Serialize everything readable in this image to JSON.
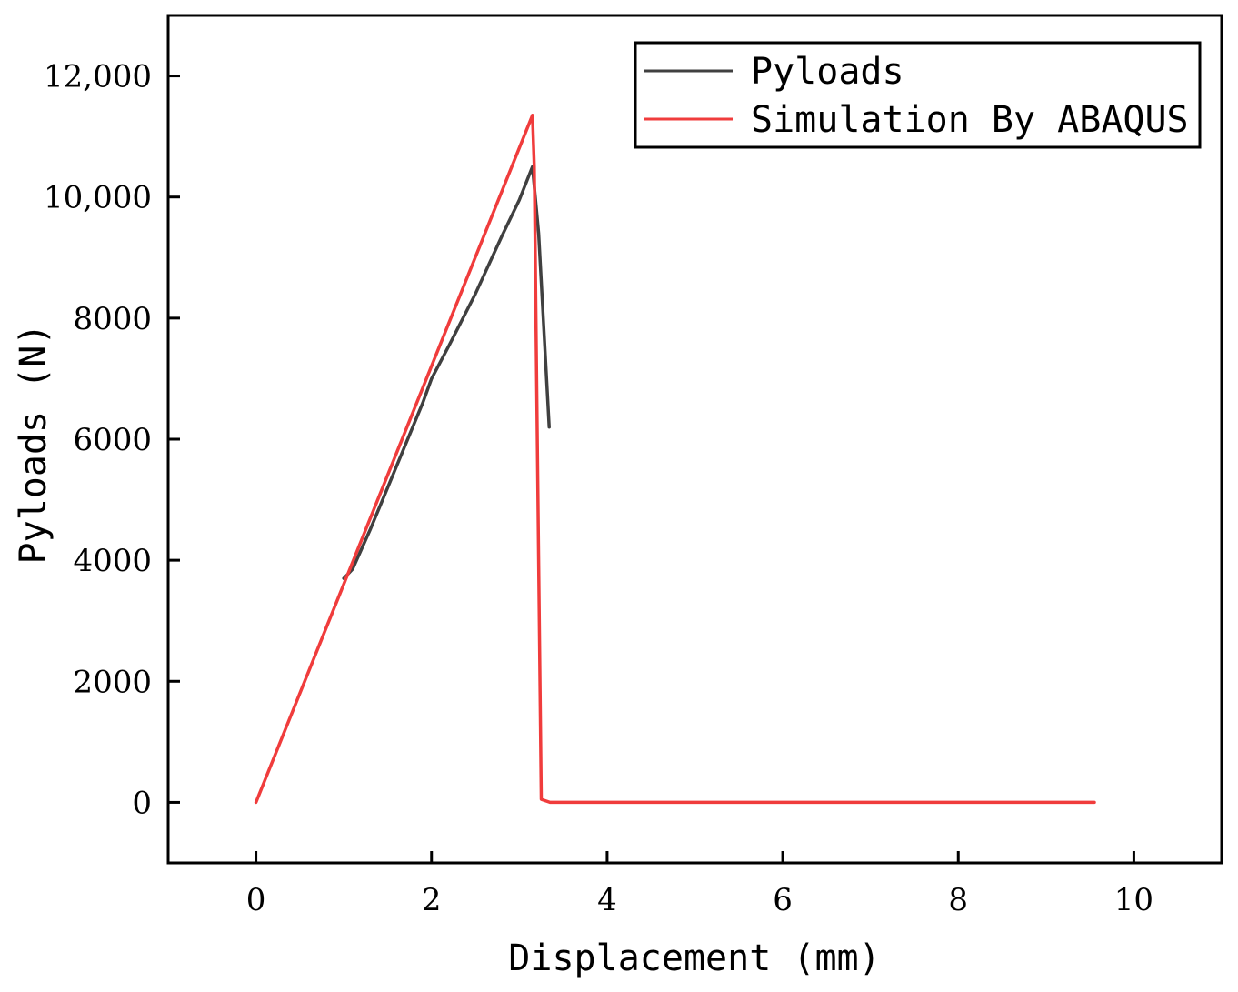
{
  "chart_data": {
    "type": "line",
    "xlabel": "Displacement (mm)",
    "ylabel": "Pyloads (N)",
    "xlim": [
      -1,
      11
    ],
    "ylim": [
      -1000,
      13000
    ],
    "x_ticks": [
      0,
      2,
      4,
      6,
      8,
      10
    ],
    "x_tick_labels": [
      "0",
      "2",
      "4",
      "6",
      "8",
      "10"
    ],
    "y_ticks": [
      0,
      2000,
      4000,
      6000,
      8000,
      10000,
      12000
    ],
    "y_tick_labels": [
      "0",
      "2000",
      "4000",
      "6000",
      "8000",
      "10,000",
      "12,000"
    ],
    "grid": false,
    "legend_position": "top-right",
    "series": [
      {
        "name": "Pyloads",
        "color": "#404040",
        "x": [
          1.0,
          1.1,
          1.3,
          1.5,
          1.7,
          1.9,
          2.0,
          2.2,
          2.5,
          2.8,
          3.0,
          3.15,
          3.22,
          3.34
        ],
        "y": [
          3700,
          3850,
          4500,
          5200,
          5900,
          6600,
          7000,
          7550,
          8400,
          9350,
          9950,
          10500,
          9400,
          6200
        ]
      },
      {
        "name": "Simulation By ABAQUS",
        "color": "#f03c3c",
        "x": [
          0,
          3.15,
          3.17,
          3.25,
          3.35,
          9.55
        ],
        "y": [
          0,
          11350,
          10500,
          50,
          0,
          0
        ]
      }
    ]
  }
}
